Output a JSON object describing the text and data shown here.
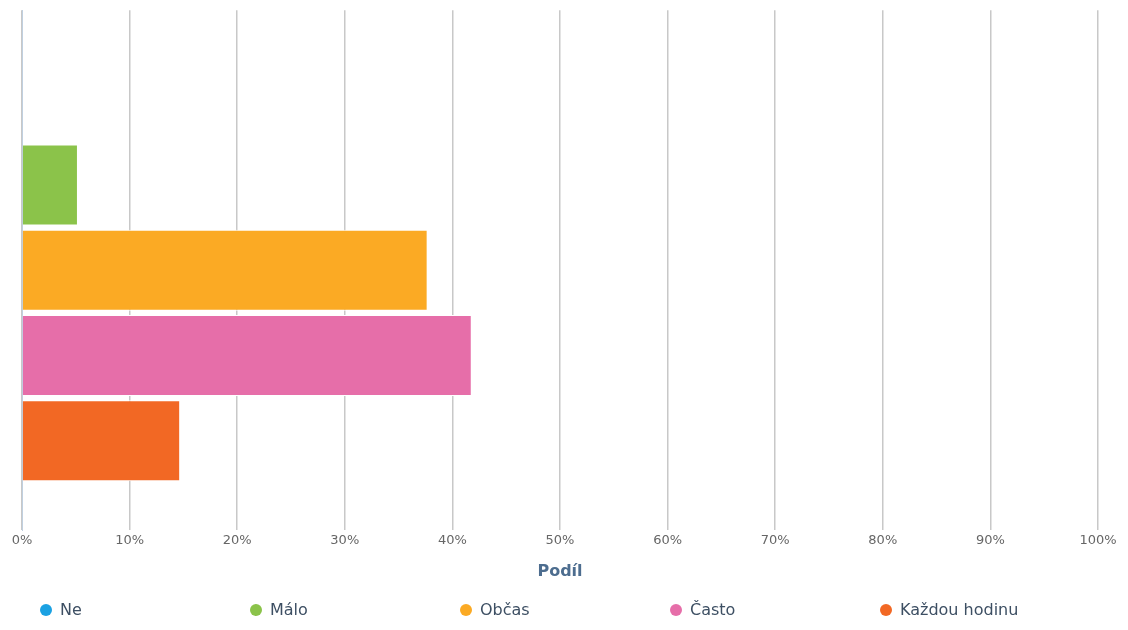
{
  "chart_data": {
    "type": "bar",
    "orientation": "horizontal",
    "categories": [
      null
    ],
    "xlabel": "Podíl",
    "series": [
      {
        "name": "Ne",
        "color": "#1ba1e2",
        "values": [
          0
        ]
      },
      {
        "name": "Málo",
        "color": "#8bc34a",
        "values": [
          5.2
        ]
      },
      {
        "name": "Občas",
        "color": "#fbaa24",
        "values": [
          37.7
        ]
      },
      {
        "name": "Často",
        "color": "#e66ea9",
        "values": [
          41.8
        ]
      },
      {
        "name": "Každou hodinu",
        "color": "#f26824",
        "values": [
          14.7
        ]
      }
    ],
    "xlim": [
      0,
      100
    ],
    "xticks": [
      {
        "value": 0,
        "label": "0%"
      },
      {
        "value": 10,
        "label": "10%"
      },
      {
        "value": 20,
        "label": "20%"
      },
      {
        "value": 30,
        "label": "30%"
      },
      {
        "value": 40,
        "label": "40%"
      },
      {
        "value": 50,
        "label": "50%"
      },
      {
        "value": 60,
        "label": "60%"
      },
      {
        "value": 70,
        "label": "70%"
      },
      {
        "value": 80,
        "label": "80%"
      },
      {
        "value": 90,
        "label": "90%"
      },
      {
        "value": 100,
        "label": "100%"
      }
    ],
    "grid": "x",
    "legend": "bottom"
  }
}
